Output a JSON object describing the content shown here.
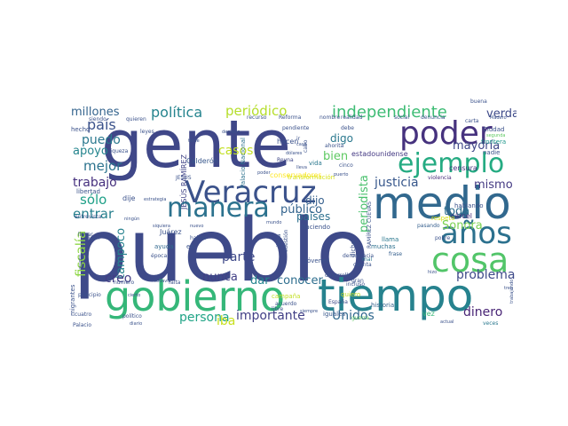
{
  "wordcloud": {
    "palette": [
      "#440154",
      "#3b528b",
      "#21918c",
      "#5ec962",
      "#fde725"
    ],
    "words": [
      {
        "text": "pueblo",
        "color": "#3e4a89"
      },
      {
        "text": "gente",
        "color": "#3f4788"
      },
      {
        "text": "medio",
        "color": "#31688e"
      },
      {
        "text": "tiempo",
        "color": "#26828e"
      },
      {
        "text": "gobierno",
        "color": "#35b779"
      },
      {
        "text": "Veracruz",
        "color": "#3b528b"
      },
      {
        "text": "manera",
        "color": "#2c728e"
      },
      {
        "text": "poder",
        "color": "#46327e"
      },
      {
        "text": "cosa",
        "color": "#52c569"
      },
      {
        "text": "años",
        "color": "#2c718e"
      },
      {
        "text": "ejemplo",
        "color": "#25ab82"
      },
      {
        "text": "independiente",
        "color": "#3dbc74"
      },
      {
        "text": "periódico",
        "color": "#b5de2b"
      },
      {
        "text": "política",
        "color": "#25848e"
      },
      {
        "text": "millones",
        "color": "#33638d"
      },
      {
        "text": "país",
        "color": "#3b528b"
      },
      {
        "text": "puedo",
        "color": "#2a788e"
      },
      {
        "text": "apoyo",
        "color": "#25858e"
      },
      {
        "text": "mejor",
        "color": "#2c738e"
      },
      {
        "text": "trabajo",
        "color": "#46307e"
      },
      {
        "text": "entrar",
        "color": "#27808e"
      },
      {
        "text": "sólo",
        "color": "#1fa088"
      },
      {
        "text": "fiscalía",
        "color": "#8ed645"
      },
      {
        "text": "tampoco",
        "color": "#26828e"
      },
      {
        "text": "creo",
        "color": "#433e85"
      },
      {
        "text": "nunca",
        "color": "#424086"
      },
      {
        "text": "parte",
        "color": "#3e4989"
      },
      {
        "text": "persona",
        "color": "#20a486"
      },
      {
        "text": "iba",
        "color": "#c8e020"
      },
      {
        "text": "importante",
        "color": "#424086"
      },
      {
        "text": "dar",
        "color": "#25858e"
      },
      {
        "text": "conocer",
        "color": "#2e6e8e"
      },
      {
        "text": "público",
        "color": "#33638d"
      },
      {
        "text": "países",
        "color": "#2d708e"
      },
      {
        "text": "dijo",
        "color": "#355f8d"
      },
      {
        "text": "Unidos",
        "color": "#31688e"
      },
      {
        "text": "dinero",
        "color": "#482475"
      },
      {
        "text": "problema",
        "color": "#3e4a89"
      },
      {
        "text": "Sonora",
        "color": "#7ad151"
      },
      {
        "text": "toda",
        "color": "#2e6e8e"
      },
      {
        "text": "mismo",
        "color": "#443a83"
      },
      {
        "text": "justicia",
        "color": "#38588c"
      },
      {
        "text": "periodista",
        "color": "#4ac16d"
      },
      {
        "text": "bien",
        "color": "#5ec962"
      },
      {
        "text": "mayoría",
        "color": "#3f4788"
      },
      {
        "text": "digo",
        "color": "#2a788e"
      },
      {
        "text": "verdad",
        "color": "#3e4a89"
      },
      {
        "text": "casos",
        "color": "#c2df23"
      },
      {
        "text": "Calderón",
        "color": "#38588c"
      },
      {
        "text": "JESÚS RAMÍREZ",
        "color": "#414487"
      },
      {
        "text": "Palacio Nacional",
        "color": "#2c728e"
      },
      {
        "text": "hacen",
        "color": "#3b528b"
      },
      {
        "text": "conservadores",
        "color": "#fde725"
      },
      {
        "text": "transformación",
        "color": "#d8e219"
      },
      {
        "text": "vida",
        "color": "#2a788e"
      },
      {
        "text": "Reyna",
        "color": "#3f4788"
      },
      {
        "text": "estadounidense",
        "color": "#443983"
      },
      {
        "text": "cárcel",
        "color": "#472d7b"
      },
      {
        "text": "censura",
        "color": "#46307e"
      },
      {
        "text": "frontera",
        "color": "#1f988b"
      },
      {
        "text": "Ciudad",
        "color": "#3b528b"
      },
      {
        "text": "nadie",
        "color": "#3b528b"
      },
      {
        "text": "violencia",
        "color": "#472c7a"
      },
      {
        "text": "hablando",
        "color": "#3b528b"
      },
      {
        "text": "respeto",
        "color": "#d8e219"
      },
      {
        "text": "pasando",
        "color": "#355f8d"
      },
      {
        "text": "llama",
        "color": "#2a788e"
      },
      {
        "text": "frase",
        "color": "#355f8d"
      },
      {
        "text": "mal",
        "color": "#2a788e"
      },
      {
        "text": "muchas",
        "color": "#2d708e"
      },
      {
        "text": "jóvenes",
        "color": "#3b528b"
      },
      {
        "text": "historia",
        "color": "#33638d"
      },
      {
        "text": "incluso",
        "color": "#3b528b"
      },
      {
        "text": "iguales",
        "color": "#38588c"
      },
      {
        "text": "España",
        "color": "#3e4a89"
      },
      {
        "text": "guerra",
        "color": "#5ec962"
      },
      {
        "text": "vez",
        "color": "#37b878"
      },
      {
        "text": "veces",
        "color": "#2a788e"
      },
      {
        "text": "haciendo",
        "color": "#3b528b"
      },
      {
        "text": "llega",
        "color": "#3b528b"
      },
      {
        "text": "cuestión",
        "color": "#3b528b"
      },
      {
        "text": "democracia",
        "color": "#3b528b"
      },
      {
        "text": "gran",
        "color": "#3b528b"
      },
      {
        "text": "cuenta",
        "color": "#3b528b"
      },
      {
        "text": "dicho",
        "color": "#3b528b"
      },
      {
        "text": "quiero",
        "color": "#c2df23"
      },
      {
        "text": "campaña",
        "color": "#c2df23"
      },
      {
        "text": "ayuda",
        "color": "#31688e"
      },
      {
        "text": "Juárez",
        "color": "#3b528b"
      },
      {
        "text": "época",
        "color": "#3b528b"
      },
      {
        "text": "hablar",
        "color": "#3b528b"
      },
      {
        "text": "dicen",
        "color": "#3b528b"
      },
      {
        "text": "migrantes",
        "color": "#3b528b"
      },
      {
        "text": "principio",
        "color": "#3b528b"
      },
      {
        "text": "cuatro",
        "color": "#3b528b"
      },
      {
        "text": "Palacio",
        "color": "#3b528b"
      },
      {
        "text": "político",
        "color": "#3b528b"
      },
      {
        "text": "diario",
        "color": "#3b528b"
      },
      {
        "text": "entrevista",
        "color": "#3b528b"
      },
      {
        "text": "libertad",
        "color": "#3b528b"
      },
      {
        "text": "dije",
        "color": "#3b528b"
      },
      {
        "text": "JESÚS",
        "color": "#3b528b"
      },
      {
        "text": "hecho",
        "color": "#3b528b"
      },
      {
        "text": "siendo",
        "color": "#3b528b"
      },
      {
        "text": "quieren",
        "color": "#3b528b"
      },
      {
        "text": "riqueza",
        "color": "#3b528b"
      },
      {
        "text": "llevar",
        "color": "#3b528b"
      },
      {
        "text": "asunto",
        "color": "#3b528b"
      },
      {
        "text": "número",
        "color": "#3b528b"
      },
      {
        "text": "falta",
        "color": "#3b528b"
      },
      {
        "text": "libre",
        "color": "#3b528b"
      },
      {
        "text": "acuerdo",
        "color": "#3b528b"
      },
      {
        "text": "desarrollo",
        "color": "#3b528b"
      },
      {
        "text": "Reforma",
        "color": "#3b528b"
      },
      {
        "text": "recurso",
        "color": "#3b528b"
      },
      {
        "text": "nombre",
        "color": "#3b528b"
      },
      {
        "text": "realidad",
        "color": "#3b528b"
      },
      {
        "text": "social",
        "color": "#3b528b"
      },
      {
        "text": "denuncia",
        "color": "#3b528b"
      },
      {
        "text": "debe",
        "color": "#3b528b"
      },
      {
        "text": "ahorita",
        "color": "#3b528b"
      },
      {
        "text": "cinco",
        "color": "#3b528b"
      },
      {
        "text": "pobre",
        "color": "#3b528b"
      },
      {
        "text": "carta",
        "color": "#3b528b"
      },
      {
        "text": "buena",
        "color": "#3b528b"
      },
      {
        "text": "segunda",
        "color": "#5ec962"
      },
      {
        "text": "Madero",
        "color": "#3b528b"
      },
      {
        "text": "pendiente",
        "color": "#3b528b"
      },
      {
        "text": "decisión",
        "color": "#3b528b"
      },
      {
        "text": "leyes",
        "color": "#3b528b"
      },
      {
        "text": "estrategia",
        "color": "#3b528b"
      },
      {
        "text": "siquiera",
        "color": "#3b528b"
      },
      {
        "text": "nuevo",
        "color": "#3b528b"
      },
      {
        "text": "todavía",
        "color": "#3b528b"
      },
      {
        "text": "ningún",
        "color": "#3b528b"
      },
      {
        "text": "mundo",
        "color": "#3b528b"
      },
      {
        "text": "dólares",
        "color": "#3b528b"
      },
      {
        "text": "lleva",
        "color": "#3b528b"
      },
      {
        "text": "RAMÍREZ CUEVAS",
        "color": "#3b528b"
      },
      {
        "text": "trabajando",
        "color": "#3b528b"
      },
      {
        "text": "tiene",
        "color": "#3b528b"
      },
      {
        "text": "cierto",
        "color": "#3b528b"
      },
      {
        "text": "siempre",
        "color": "#3b528b"
      },
      {
        "text": "hizo",
        "color": "#3b528b"
      },
      {
        "text": "actual",
        "color": "#3b528b"
      },
      {
        "text": "tren",
        "color": "#3b528b"
      },
      {
        "text": "poder",
        "color": "#3b528b"
      },
      {
        "text": "casa",
        "color": "#3b528b"
      },
      {
        "text": "ir",
        "color": "#3b528b"
      },
      {
        "text": "cabo",
        "color": "#3b528b"
      },
      {
        "text": "puerto",
        "color": "#3b528b"
      },
      {
        "text": "eh",
        "color": "#3b528b"
      }
    ]
  }
}
